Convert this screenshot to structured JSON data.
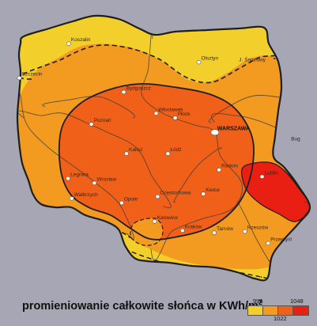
{
  "map": {
    "colors": {
      "background": "#a6a6b4",
      "zone_low": "#f2cf2a",
      "zone_mid": "#f39a21",
      "zone_high": "#f06018",
      "zone_max": "#e81f12",
      "border": "#1e1e1e",
      "river": "#3b3b3b",
      "city_dot": "#ffffff"
    },
    "cities": [
      {
        "name": "Szczecin",
        "lon": 14.55,
        "lat": 53.43
      },
      {
        "name": "Koszalin",
        "lon": 16.18,
        "lat": 54.19
      },
      {
        "name": "Olsztyn",
        "lon": 20.48,
        "lat": 53.78
      },
      {
        "name": "J. Śniardwy",
        "lon": 21.73,
        "lat": 53.75
      },
      {
        "name": "Bydgoszcz",
        "lon": 18.0,
        "lat": 53.12
      },
      {
        "name": "Poznań",
        "lon": 16.93,
        "lat": 52.41
      },
      {
        "name": "Włocławek",
        "lon": 19.07,
        "lat": 52.65
      },
      {
        "name": "Płock",
        "lon": 19.7,
        "lat": 52.55
      },
      {
        "name": "WARSZAWA",
        "lon": 21.01,
        "lat": 52.23,
        "capital": true
      },
      {
        "name": "Łódź",
        "lon": 19.46,
        "lat": 51.76
      },
      {
        "name": "Kalisz",
        "lon": 18.09,
        "lat": 51.76
      },
      {
        "name": "Radom",
        "lon": 21.15,
        "lat": 51.4
      },
      {
        "name": "Lublin",
        "lon": 22.57,
        "lat": 51.25
      },
      {
        "name": "Kielce",
        "lon": 20.63,
        "lat": 50.87
      },
      {
        "name": "Legnica",
        "lon": 16.16,
        "lat": 51.21
      },
      {
        "name": "Wrocław",
        "lon": 17.03,
        "lat": 51.11
      },
      {
        "name": "Częstochowa",
        "lon": 19.12,
        "lat": 50.81
      },
      {
        "name": "Wałbrzych",
        "lon": 16.28,
        "lat": 50.77
      },
      {
        "name": "Opole",
        "lon": 17.93,
        "lat": 50.67
      },
      {
        "name": "Katowice",
        "lon": 19.02,
        "lat": 50.26
      },
      {
        "name": "Kraków",
        "lon": 19.94,
        "lat": 50.06
      },
      {
        "name": "Tarnów",
        "lon": 20.99,
        "lat": 50.01
      },
      {
        "name": "Rzeszów",
        "lon": 22.0,
        "lat": 50.04
      },
      {
        "name": "Przemyśl",
        "lon": 22.77,
        "lat": 49.78
      },
      {
        "name": "Bug",
        "lon": 23.45,
        "lat": 52.0
      }
    ],
    "rivers": [
      {
        "name": "Wisła",
        "points": [
          [
            18.9,
            49.65
          ],
          [
            19.6,
            50.05
          ],
          [
            20.5,
            50.3
          ],
          [
            21.6,
            50.55
          ],
          [
            21.9,
            51.1
          ],
          [
            21.2,
            51.7
          ],
          [
            21.0,
            52.25
          ],
          [
            20.3,
            52.4
          ],
          [
            19.3,
            52.65
          ],
          [
            18.6,
            53.05
          ],
          [
            18.8,
            53.6
          ],
          [
            18.95,
            54.3
          ]
        ]
      },
      {
        "name": "Odra",
        "points": [
          [
            18.1,
            50.0
          ],
          [
            17.9,
            50.6
          ],
          [
            17.1,
            51.1
          ],
          [
            16.3,
            51.5
          ],
          [
            15.5,
            51.9
          ],
          [
            14.8,
            52.4
          ],
          [
            14.6,
            53.0
          ],
          [
            14.55,
            53.45
          ]
        ]
      },
      {
        "name": "Warta",
        "points": [
          [
            19.3,
            50.6
          ],
          [
            18.9,
            51.3
          ],
          [
            18.4,
            51.9
          ],
          [
            17.4,
            52.25
          ],
          [
            16.9,
            52.4
          ],
          [
            16.0,
            52.65
          ],
          [
            15.3,
            52.6
          ],
          [
            14.7,
            52.55
          ]
        ]
      },
      {
        "name": "Narew",
        "points": [
          [
            23.6,
            52.85
          ],
          [
            22.5,
            53.05
          ],
          [
            21.6,
            52.85
          ],
          [
            20.9,
            52.45
          ]
        ]
      },
      {
        "name": "Bug",
        "points": [
          [
            23.95,
            50.7
          ],
          [
            23.7,
            51.5
          ],
          [
            23.5,
            52.1
          ],
          [
            22.8,
            52.4
          ],
          [
            21.7,
            52.6
          ],
          [
            21.0,
            52.45
          ]
        ]
      },
      {
        "name": "Pilica",
        "points": [
          [
            19.7,
            50.7
          ],
          [
            20.1,
            51.2
          ],
          [
            20.6,
            51.6
          ],
          [
            21.2,
            51.85
          ]
        ]
      },
      {
        "name": "San",
        "points": [
          [
            22.8,
            49.4
          ],
          [
            22.4,
            49.85
          ],
          [
            22.0,
            50.4
          ],
          [
            21.8,
            50.65
          ]
        ]
      },
      {
        "name": "Noteć",
        "points": [
          [
            18.3,
            52.55
          ],
          [
            17.3,
            53.0
          ],
          [
            16.2,
            52.95
          ],
          [
            15.4,
            52.8
          ]
        ]
      }
    ]
  }
}
